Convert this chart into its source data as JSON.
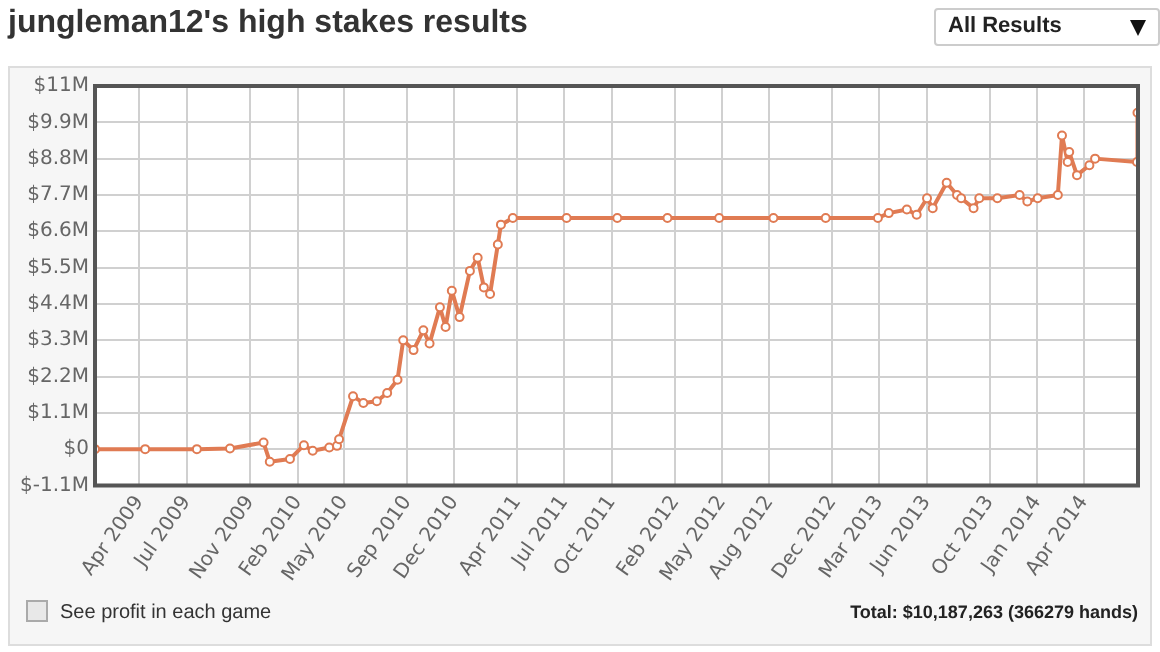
{
  "chart_data": {
    "type": "line",
    "title": "jungleman12's high stakes results",
    "annotations": [
      "All Results",
      "See profit in each game",
      "Total: $10,187,263 (366279 hands)"
    ],
    "x": [
      "2009-01-05",
      "2009-04-12",
      "2009-07-21",
      "2009-09-23",
      "2009-11-27",
      "2009-12-09",
      "2010-01-17",
      "2010-02-13",
      "2010-03-02",
      "2010-04-03",
      "2010-04-18",
      "2010-04-22",
      "2010-05-19",
      "2010-06-08",
      "2010-07-04",
      "2010-07-24",
      "2010-08-13",
      "2010-08-24",
      "2010-09-13",
      "2010-10-02",
      "2010-10-14",
      "2010-11-03",
      "2010-11-14",
      "2010-11-26",
      "2010-12-11",
      "2010-12-31",
      "2011-01-15",
      "2011-01-27",
      "2011-02-08",
      "2011-02-23",
      "2011-03-01",
      "2011-03-24",
      "2011-07-06",
      "2011-10-12",
      "2012-01-17",
      "2012-04-26",
      "2012-08-09",
      "2012-11-18",
      "2013-02-27",
      "2013-03-20",
      "2013-04-24",
      "2013-05-13",
      "2013-06-02",
      "2013-06-13",
      "2013-07-10",
      "2013-07-30",
      "2013-08-07",
      "2013-08-31",
      "2013-09-11",
      "2013-10-16",
      "2013-11-28",
      "2013-12-13",
      "2014-01-02",
      "2014-02-10",
      "2014-02-18",
      "2014-03-01",
      "2014-03-04",
      "2014-03-19",
      "2014-04-12",
      "2014-04-23",
      "2014-07-13",
      "2014-07-14"
    ],
    "series": [
      {
        "color": "#e07b53",
        "values": [
          0,
          0,
          0,
          0.02,
          0.2,
          -0.38,
          -0.3,
          0.12,
          -0.05,
          0.05,
          0.1,
          0.3,
          1.6,
          1.4,
          1.45,
          1.7,
          2.1,
          3.3,
          3.0,
          3.6,
          3.2,
          4.3,
          3.7,
          4.8,
          4.0,
          5.4,
          5.8,
          4.9,
          4.7,
          6.2,
          6.8,
          7.0,
          7.0,
          7.0,
          7.0,
          7.0,
          7.0,
          7.0,
          7.0,
          7.15,
          7.26,
          7.1,
          7.6,
          7.3,
          8.07,
          7.7,
          7.6,
          7.3,
          7.6,
          7.6,
          7.7,
          7.5,
          7.6,
          7.7,
          9.5,
          8.7,
          9.0,
          8.3,
          8.6,
          8.8,
          8.7,
          10.19
        ]
      }
    ],
    "xlim": [
      "2009-01-05",
      "2014-07-15"
    ],
    "xticks": [
      {
        "value": "2009-04-01",
        "label": "Apr 2009"
      },
      {
        "value": "2009-07-01",
        "label": "Jul 2009"
      },
      {
        "value": "2009-11-01",
        "label": "Nov 2009"
      },
      {
        "value": "2010-02-01",
        "label": "Feb 2010"
      },
      {
        "value": "2010-05-01",
        "label": "May 2010"
      },
      {
        "value": "2010-09-01",
        "label": "Sep 2010"
      },
      {
        "value": "2010-12-01",
        "label": "Dec 2010"
      },
      {
        "value": "2011-04-01",
        "label": "Apr 2011"
      },
      {
        "value": "2011-07-01",
        "label": "Jul 2011"
      },
      {
        "value": "2011-10-01",
        "label": "Oct 2011"
      },
      {
        "value": "2012-02-01",
        "label": "Feb 2012"
      },
      {
        "value": "2012-05-01",
        "label": "May 2012"
      },
      {
        "value": "2012-08-01",
        "label": "Aug 2012"
      },
      {
        "value": "2012-12-01",
        "label": "Dec 2012"
      },
      {
        "value": "2013-03-01",
        "label": "Mar 2013"
      },
      {
        "value": "2013-06-01",
        "label": "Jun 2013"
      },
      {
        "value": "2013-10-01",
        "label": "Oct 2013"
      },
      {
        "value": "2014-01-01",
        "label": "Jan 2014"
      },
      {
        "value": "2014-04-01",
        "label": "Apr 2014"
      }
    ],
    "ylim": [
      -1.1,
      11
    ],
    "yticks": [
      {
        "value": -1.1,
        "label": "$-1.1M"
      },
      {
        "value": 0,
        "label": "$0"
      },
      {
        "value": 1.1,
        "label": "$1.1M"
      },
      {
        "value": 2.2,
        "label": "$2.2M"
      },
      {
        "value": 3.3,
        "label": "$3.3M"
      },
      {
        "value": 4.4,
        "label": "$4.4M"
      },
      {
        "value": 5.5,
        "label": "$5.5M"
      },
      {
        "value": 6.6,
        "label": "$6.6M"
      },
      {
        "value": 7.7,
        "label": "$7.7M"
      },
      {
        "value": 8.8,
        "label": "$8.8M"
      },
      {
        "value": 9.9,
        "label": "$9.9M"
      },
      {
        "value": 11,
        "label": "$11M"
      }
    ],
    "grid": true,
    "legend": false,
    "marker": "circle",
    "line_style": "solid"
  }
}
